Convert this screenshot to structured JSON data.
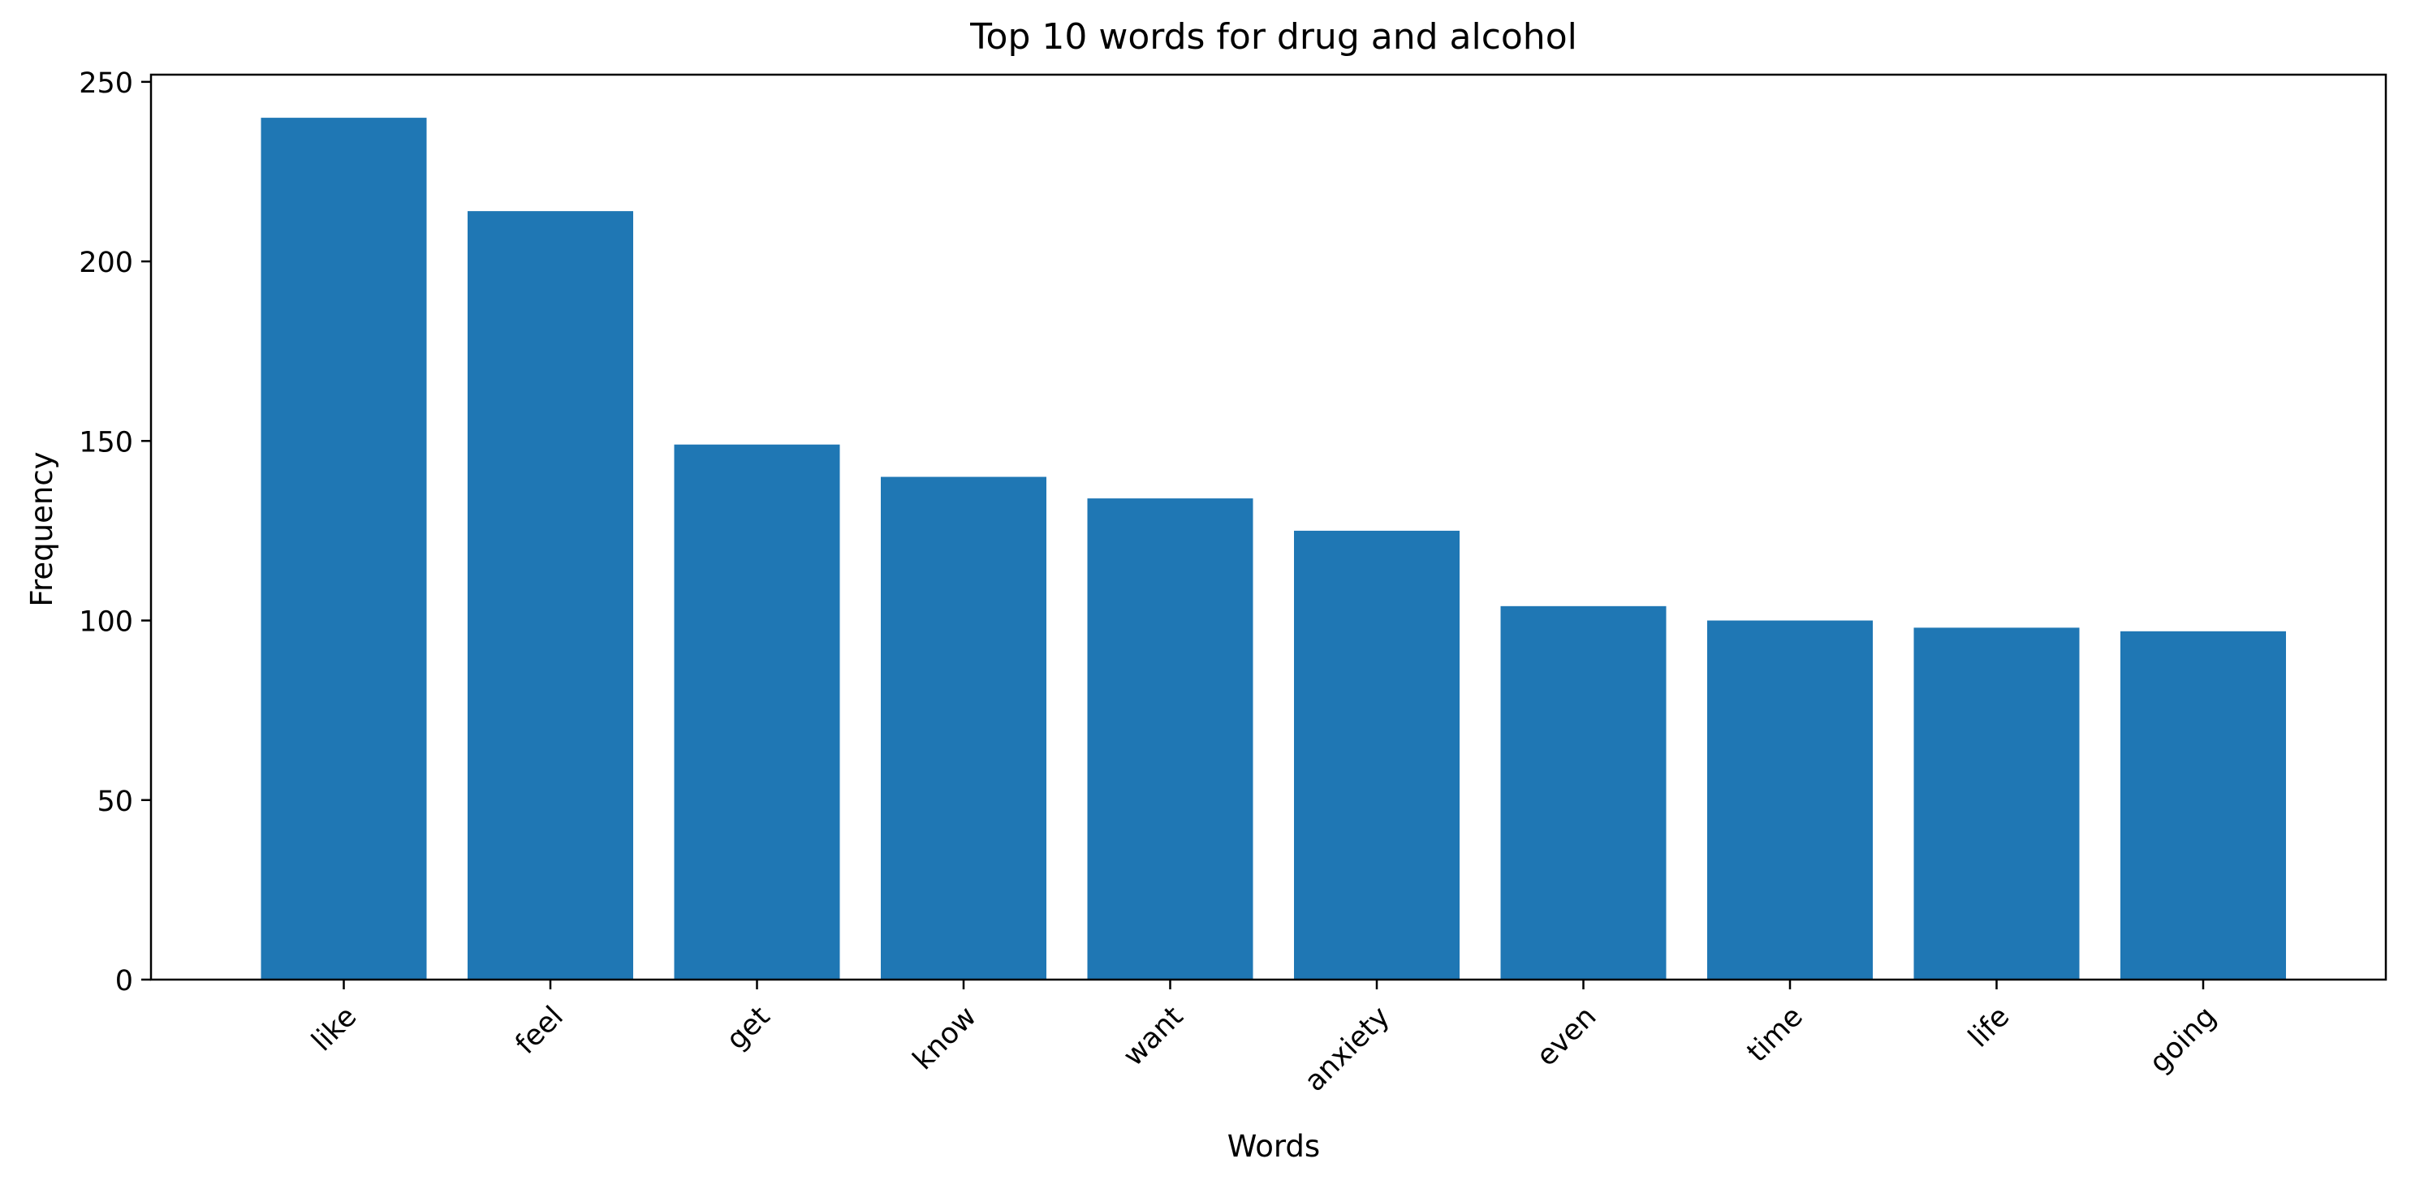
{
  "chart_data": {
    "type": "bar",
    "title": "Top 10 words for drug and alcohol",
    "xlabel": "Words",
    "ylabel": "Frequency",
    "categories": [
      "like",
      "feel",
      "get",
      "know",
      "want",
      "anxiety",
      "even",
      "time",
      "life",
      "going"
    ],
    "values": [
      240,
      214,
      149,
      140,
      134,
      125,
      104,
      100,
      98,
      97
    ],
    "ylim": [
      0,
      252
    ],
    "yticks": [
      0,
      50,
      100,
      150,
      200,
      250
    ],
    "grid": false,
    "bar_color": "#1f77b4"
  }
}
